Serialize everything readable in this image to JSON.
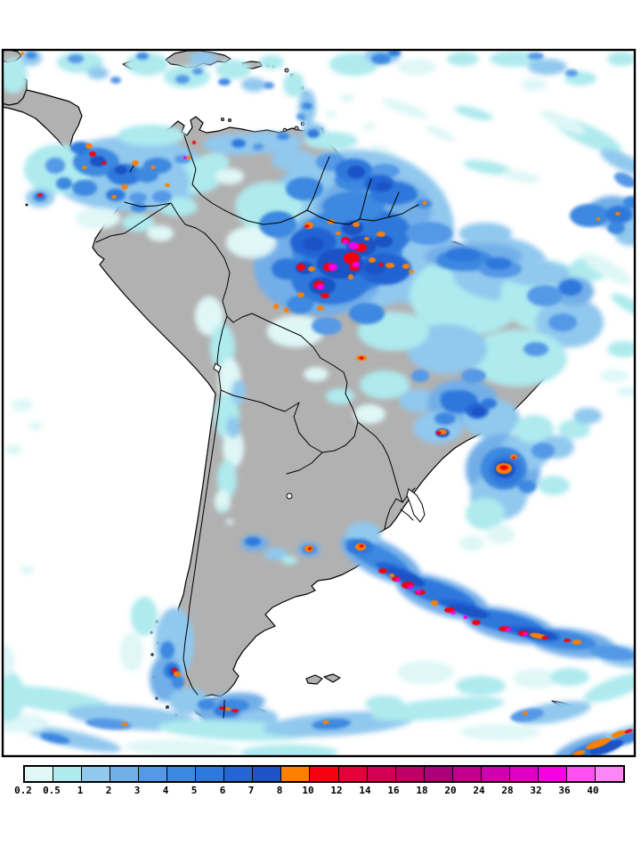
{
  "map": {
    "land_color": "#b1b1b1",
    "ocean_color": "#ffffff",
    "coast_color": "#000000",
    "frame_color": "#000000"
  },
  "legend": {
    "tick_labels": [
      "0.2",
      "0.5",
      "1",
      "2",
      "3",
      "4",
      "5",
      "6",
      "7",
      "8",
      "10",
      "12",
      "14",
      "16",
      "18",
      "20",
      "24",
      "28",
      "32",
      "36",
      "40"
    ],
    "cell_colors": [
      "#dff7f7",
      "#aeeaee",
      "#90c8ee",
      "#72aee8",
      "#5498e6",
      "#3d88e0",
      "#2f78dc",
      "#2464d4",
      "#1d53c4",
      "#fd8002",
      "#f70010",
      "#e60039",
      "#d10053",
      "#bc0066",
      "#aa0078",
      "#c0008f",
      "#cf00ad",
      "#e000c4",
      "#f800e0",
      "#fe50f0",
      "#ff86f4"
    ]
  }
}
